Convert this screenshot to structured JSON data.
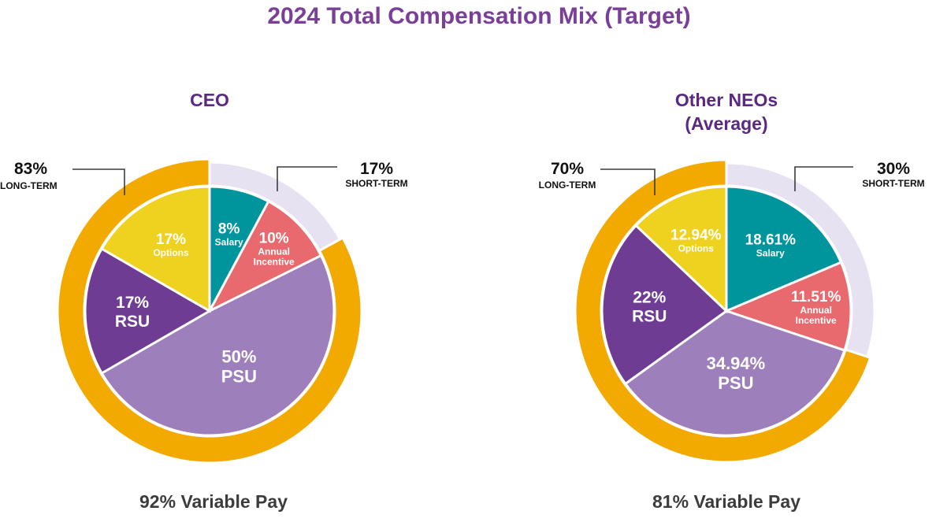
{
  "chart_data": {
    "type": "pie",
    "title": "2024 Total Compensation Mix (Target)",
    "colors": {
      "Salary": "#00959c",
      "Annual Incentive": "#e86a6e",
      "PSU": "#9d7fbb",
      "RSU": "#6e3d93",
      "Options": "#eed21f",
      "long_term_ring": "#f2a900",
      "short_term_ring": "#e7e2f1"
    },
    "charts": [
      {
        "name": "CEO",
        "footer": "92% Variable Pay",
        "slices": [
          {
            "key": "Salary",
            "value": 8,
            "pct_label": "8%",
            "label_lines": [
              "Salary"
            ]
          },
          {
            "key": "Annual Incentive",
            "value": 10,
            "pct_label": "10%",
            "label_lines": [
              "Annual",
              "Incentive"
            ]
          },
          {
            "key": "PSU",
            "value": 50,
            "pct_label": "50%",
            "label_lines": [
              "PSU"
            ]
          },
          {
            "key": "RSU",
            "value": 17,
            "pct_label": "17%",
            "label_lines": [
              "RSU"
            ]
          },
          {
            "key": "Options",
            "value": 17,
            "pct_label": "17%",
            "label_lines": [
              "Options"
            ]
          }
        ],
        "ring": [
          {
            "key": "short_term",
            "value": 17,
            "pct_label": "17%",
            "label": "SHORT-TERM"
          },
          {
            "key": "long_term",
            "value": 83,
            "pct_label": "83%",
            "label": "LONG-TERM"
          }
        ]
      },
      {
        "name": "Other NEOs\n(Average)",
        "footer": "81% Variable Pay",
        "slices": [
          {
            "key": "Salary",
            "value": 18.61,
            "pct_label": "18.61%",
            "label_lines": [
              "Salary"
            ]
          },
          {
            "key": "Annual Incentive",
            "value": 11.51,
            "pct_label": "11.51%",
            "label_lines": [
              "Annual",
              "Incentive"
            ]
          },
          {
            "key": "PSU",
            "value": 34.94,
            "pct_label": "34.94%",
            "label_lines": [
              "PSU"
            ]
          },
          {
            "key": "RSU",
            "value": 22,
            "pct_label": "22%",
            "label_lines": [
              "RSU"
            ]
          },
          {
            "key": "Options",
            "value": 12.94,
            "pct_label": "12.94%",
            "label_lines": [
              "Options"
            ]
          }
        ],
        "ring": [
          {
            "key": "short_term",
            "value": 30,
            "pct_label": "30%",
            "label": "SHORT-TERM"
          },
          {
            "key": "long_term",
            "value": 70,
            "pct_label": "70%",
            "label": "LONG-TERM"
          }
        ]
      }
    ]
  }
}
